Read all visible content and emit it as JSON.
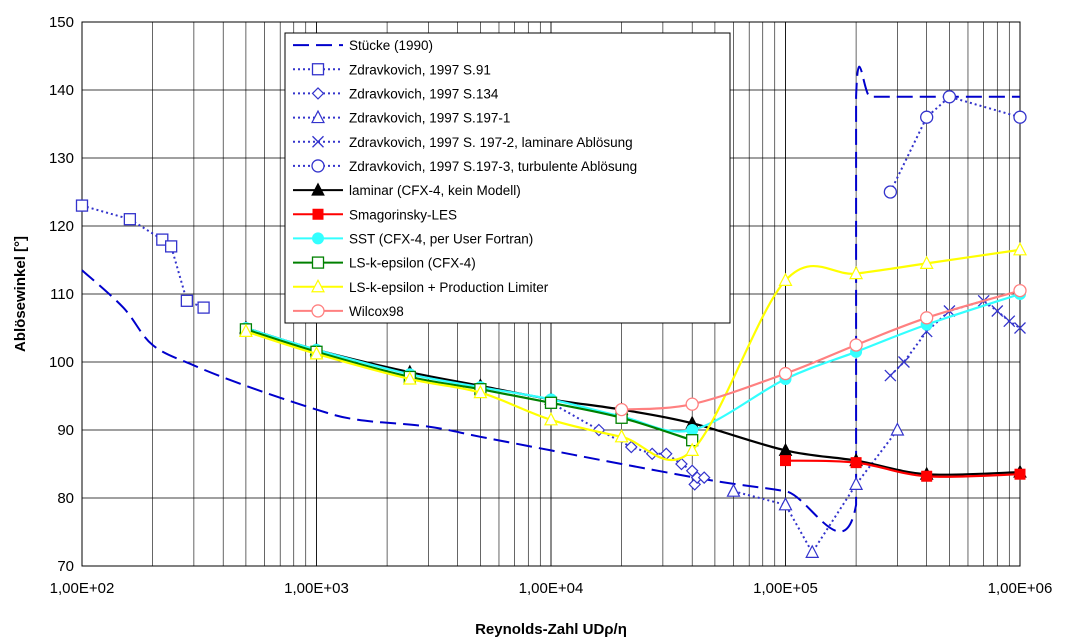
{
  "chart_data": {
    "type": "line",
    "title": "",
    "xlabel": "Reynolds-Zahl UDρ/η",
    "ylabel": "Ablösewinkel [°]",
    "xscale": "log",
    "xlim": [
      100,
      1000000
    ],
    "ylim": [
      70,
      150
    ],
    "xticks": [
      {
        "value": 100,
        "label": "1,00E+02"
      },
      {
        "value": 1000,
        "label": "1,00E+03"
      },
      {
        "value": 10000,
        "label": "1,00E+04"
      },
      {
        "value": 100000,
        "label": "1,00E+05"
      },
      {
        "value": 1000000,
        "label": "1,00E+06"
      }
    ],
    "yticks": [
      70,
      80,
      90,
      100,
      110,
      120,
      130,
      140,
      150
    ],
    "grid": true,
    "legend_position": "top-center",
    "series": [
      {
        "name": "Stücke (1990)",
        "color": "#0000cc",
        "dash": "long-dash",
        "marker": "none",
        "smooth": true,
        "x": [
          100,
          150,
          200,
          300,
          500,
          1000,
          1500,
          3000,
          5000,
          10000,
          20000,
          50000,
          100000,
          200000,
          200000,
          230000,
          300000,
          1000000
        ],
        "y": [
          113.5,
          108,
          102.5,
          99.5,
          96.5,
          93,
          91.5,
          90.5,
          89,
          87,
          85,
          82.5,
          81,
          79,
          139,
          139,
          139,
          139
        ]
      },
      {
        "name": "Zdravkovich, 1997 S.91",
        "color": "#3333cc",
        "dash": "dotted",
        "marker": "square-open",
        "smooth": false,
        "x": [
          100,
          160,
          220,
          240,
          280,
          330
        ],
        "y": [
          123,
          121,
          118,
          117,
          109,
          108
        ]
      },
      {
        "name": "Zdravkovich, 1997 S.134",
        "color": "#3333cc",
        "dash": "dotted",
        "marker": "diamond-open",
        "smooth": false,
        "x": [
          10000,
          16000,
          22000,
          27000,
          31000,
          36000,
          40000,
          41000,
          42000,
          45000
        ],
        "y": [
          94,
          90,
          87.5,
          86.5,
          86.5,
          85,
          84,
          82,
          83,
          83
        ]
      },
      {
        "name": "Zdravkovich, 1997 S.197-1",
        "color": "#3333cc",
        "dash": "dotted",
        "marker": "triangle-open",
        "smooth": false,
        "x": [
          60000,
          100000,
          130000,
          200000,
          300000
        ],
        "y": [
          81,
          79,
          72,
          82,
          90
        ]
      },
      {
        "name": "Zdravkovich, 1997 S. 197-2, laminare Ablösung",
        "color": "#3333cc",
        "dash": "dotted",
        "marker": "x",
        "smooth": false,
        "x": [
          280000,
          320000,
          400000,
          500000,
          700000,
          800000,
          900000,
          1000000
        ],
        "y": [
          98,
          100,
          104.5,
          107.5,
          109,
          107.5,
          106,
          105
        ]
      },
      {
        "name": "Zdravkovich, 1997 S.197-3, turbulente Ablösung",
        "color": "#3333cc",
        "dash": "dotted",
        "marker": "circle-open",
        "smooth": false,
        "x": [
          280000,
          400000,
          500000,
          1000000
        ],
        "y": [
          125,
          136,
          139,
          136
        ]
      },
      {
        "name": "laminar (CFX-4, kein Modell)",
        "color": "#000000",
        "dash": "solid",
        "marker": "triangle-filled",
        "smooth": true,
        "x": [
          500,
          1000,
          2500,
          5000,
          10000,
          20000,
          40000,
          100000,
          200000,
          400000,
          1000000
        ],
        "y": [
          105,
          101.8,
          98.5,
          96.5,
          94.5,
          93,
          91,
          87,
          85.5,
          83.5,
          83.8
        ]
      },
      {
        "name": "Smagorinsky-LES",
        "color": "#ff0000",
        "dash": "solid",
        "marker": "square-filled",
        "smooth": true,
        "x": [
          100000,
          200000,
          400000,
          1000000
        ],
        "y": [
          85.5,
          85.2,
          83.2,
          83.5
        ]
      },
      {
        "name": "SST (CFX-4, per User Fortran)",
        "color": "#33ffff",
        "dash": "solid",
        "marker": "circle-filled",
        "smooth": true,
        "x": [
          500,
          1000,
          2500,
          5000,
          10000,
          20000,
          40000,
          100000,
          200000,
          400000,
          1000000
        ],
        "y": [
          105,
          101.8,
          98.2,
          96.3,
          94.5,
          92,
          90,
          97.5,
          101.5,
          105.5,
          110
        ]
      },
      {
        "name": "LS-k-epsilon (CFX-4)",
        "color": "#008000",
        "dash": "solid",
        "marker": "square-open",
        "smooth": true,
        "x": [
          500,
          1000,
          2500,
          5000,
          10000,
          20000,
          40000
        ],
        "y": [
          104.8,
          101.5,
          97.8,
          96,
          94,
          91.8,
          88.5
        ]
      },
      {
        "name": "LS-k-epsilon + Production Limiter",
        "color": "#ffff00",
        "dash": "solid",
        "marker": "triangle-open",
        "smooth": true,
        "x": [
          500,
          1000,
          2500,
          5000,
          10000,
          20000,
          40000,
          100000,
          200000,
          400000,
          1000000
        ],
        "y": [
          104.5,
          101.2,
          97.5,
          95.5,
          91.5,
          89,
          87,
          112,
          113,
          114.5,
          116.5
        ]
      },
      {
        "name": "Wilcox98",
        "color": "#ff8080",
        "dash": "solid",
        "marker": "circle-open",
        "smooth": true,
        "x": [
          20000,
          40000,
          100000,
          200000,
          400000,
          1000000
        ],
        "y": [
          93,
          93.8,
          98.3,
          102.5,
          106.5,
          110.5
        ]
      }
    ]
  }
}
